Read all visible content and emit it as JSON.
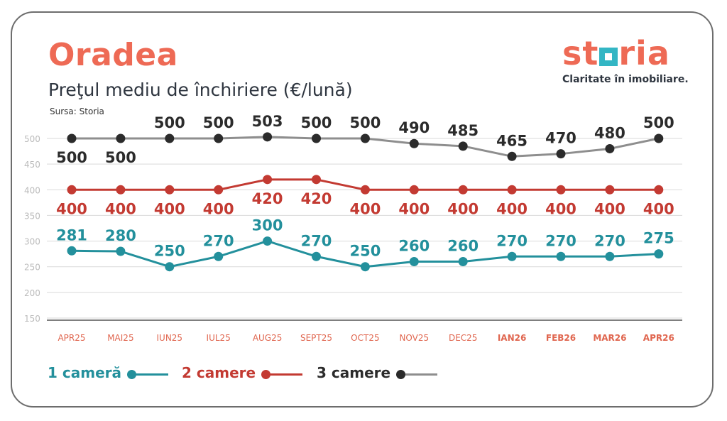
{
  "colors": {
    "accent": "#ee6a55",
    "series_1": "#23909c",
    "series_2": "#c33a32",
    "series_3": "#2b2b2b",
    "series_3_line": "#8e8e8e",
    "grid": "#d9d9d9",
    "tick": "#bbbbbb",
    "xlabel": "#e0664f"
  },
  "header": {
    "city": "Oradea",
    "subtitle": "Preţul mediu de închiriere (€/lună)",
    "source": "Sursa: Storia"
  },
  "logo": {
    "text_before": "st",
    "text_after": "ria",
    "tagline": "Claritate în imobiliare."
  },
  "chart_data": {
    "type": "line",
    "x": [
      "APR25",
      "MAI25",
      "IUN25",
      "IUL25",
      "AUG25",
      "SEPT25",
      "OCT25",
      "NOV25",
      "DEC25",
      "IAN26",
      "FEB26",
      "MAR26",
      "APR26"
    ],
    "x_bold": [
      false,
      false,
      false,
      false,
      false,
      false,
      false,
      false,
      false,
      true,
      true,
      true,
      true
    ],
    "y_ticks": [
      150,
      200,
      250,
      300,
      350,
      400,
      450,
      500
    ],
    "ylim": [
      150,
      500
    ],
    "grid": true,
    "legend_position": "bottom-left",
    "series": [
      {
        "name": "1 cameră",
        "values": [
          281,
          280,
          250,
          270,
          300,
          270,
          250,
          260,
          260,
          270,
          270,
          270,
          275
        ],
        "label_side": "above"
      },
      {
        "name": "2 camere",
        "values": [
          400,
          400,
          400,
          400,
          420,
          420,
          400,
          400,
          400,
          400,
          400,
          400,
          400
        ],
        "label_side": "below"
      },
      {
        "name": "3 camere",
        "values": [
          500,
          500,
          500,
          500,
          503,
          500,
          500,
          490,
          485,
          465,
          470,
          480,
          500
        ],
        "label_side": [
          "below",
          "below",
          "above",
          "above",
          "above",
          "above",
          "above",
          "above",
          "above",
          "above",
          "above",
          "above",
          "above"
        ]
      }
    ]
  }
}
